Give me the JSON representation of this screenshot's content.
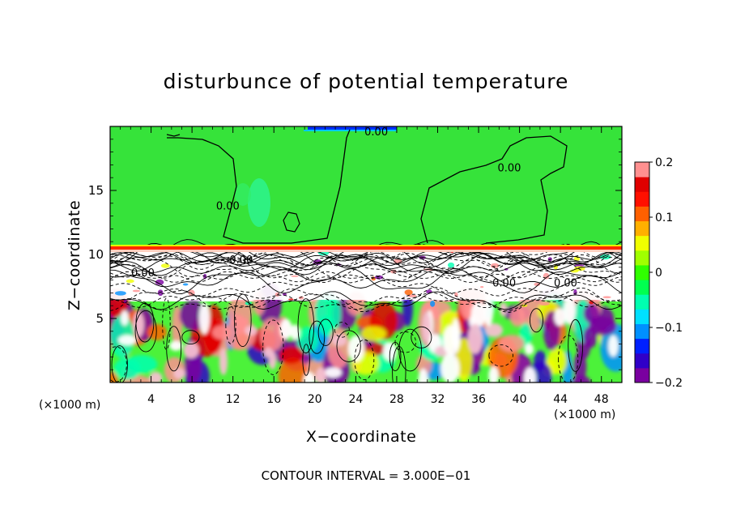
{
  "chart_data": {
    "type": "heatmap",
    "title": "disturbunce of potential temperature",
    "xlabel": "X−coordinate",
    "ylabel": "Z−coordinate",
    "x_unit_left": "(×1000 m)",
    "x_unit_right": "(×1000 m)",
    "footer": "CONTOUR INTERVAL = 3.000E−01",
    "xlim": [
      0,
      50
    ],
    "ylim": [
      0,
      20
    ],
    "x_ticks": [
      4,
      8,
      12,
      16,
      20,
      24,
      28,
      32,
      36,
      40,
      44,
      48
    ],
    "y_ticks": [
      5,
      10,
      15
    ],
    "colorbar": {
      "range": [
        -0.2,
        0.2
      ],
      "tick_labels": [
        {
          "value": 0.2,
          "label": "0.2"
        },
        {
          "value": 0.1,
          "label": "0.1"
        },
        {
          "value": 0,
          "label": "0"
        },
        {
          "value": -0.1,
          "label": "−0.1"
        },
        {
          "value": -0.2,
          "label": "−0.2"
        }
      ],
      "colors": [
        "#7a00a0",
        "#3000c8",
        "#0020ff",
        "#0090ff",
        "#00e0ff",
        "#00ffb0",
        "#00ff50",
        "#30ff00",
        "#a0ff00",
        "#f0ff00",
        "#ffb000",
        "#ff6000",
        "#ff1000",
        "#e00000",
        "#ff9090"
      ]
    },
    "contour_interval": 0.3,
    "contour_labels": [
      {
        "x": 26.0,
        "y": 19.3,
        "label": "0.00"
      },
      {
        "x": 11.5,
        "y": 13.5,
        "label": "0.00"
      },
      {
        "x": 39.0,
        "y": 16.5,
        "label": "0.00"
      },
      {
        "x": 12.8,
        "y": 9.3,
        "label": "0.00"
      },
      {
        "x": 3.2,
        "y": 8.3,
        "label": "0.00"
      },
      {
        "x": 38.5,
        "y": 7.5,
        "label": "0.00"
      },
      {
        "x": 44.5,
        "y": 7.5,
        "label": "0.00"
      }
    ],
    "regions": {
      "upper_layer": {
        "z_range": [
          10.7,
          20
        ],
        "value": 0
      },
      "tropopause_band": {
        "z": 10.5,
        "value": 0.2
      },
      "lower_layer": {
        "z_range": [
          0,
          10.5
        ],
        "value_range": [
          -0.2,
          0.2
        ]
      }
    }
  }
}
